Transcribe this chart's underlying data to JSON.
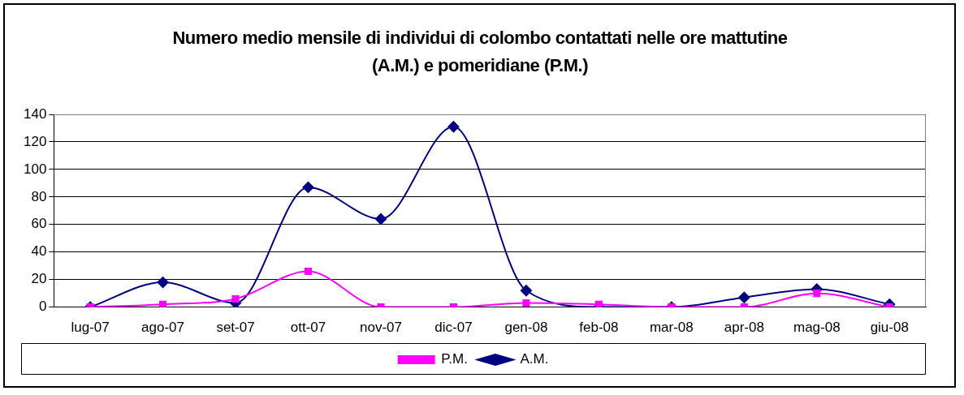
{
  "chart_data": {
    "type": "line",
    "title": "Numero medio mensile di individui di colombo contattati nelle ore mattutine (A.M.) e pomeridiane (P.M.)",
    "categories": [
      "lug-07",
      "ago-07",
      "set-07",
      "ott-07",
      "nov-07",
      "dic-07",
      "gen-08",
      "feb-08",
      "mar-08",
      "apr-08",
      "mag-08",
      "giu-08"
    ],
    "series": [
      {
        "name": "A.M.",
        "color": "#000080",
        "marker": "diamond",
        "values": [
          0,
          18,
          3,
          87,
          64,
          131,
          12,
          0,
          0,
          7,
          13,
          2
        ]
      },
      {
        "name": "P.M.",
        "color": "#ff00ff",
        "marker": "square",
        "values": [
          0,
          2,
          6,
          26,
          0,
          0,
          3,
          2,
          0,
          0,
          10,
          0
        ]
      }
    ],
    "ylim": [
      0,
      140
    ],
    "yticks": [
      0,
      20,
      40,
      60,
      80,
      100,
      120,
      140
    ],
    "grid": "y",
    "legend": "bottom",
    "line_style": "solid"
  }
}
